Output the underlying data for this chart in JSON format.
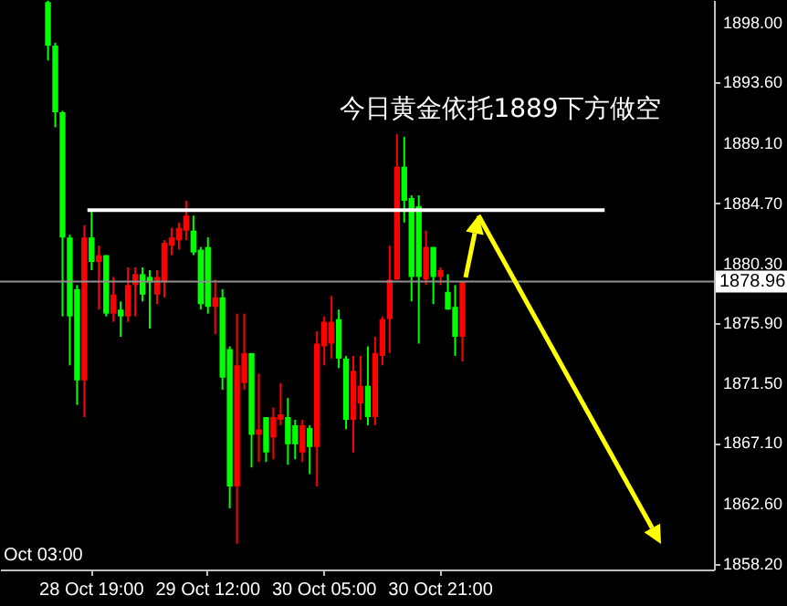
{
  "chart_data": {
    "type": "candlestick",
    "annotations": [
      "今日黄金依托1889下方做空",
      "Oct 03:00"
    ],
    "categories": [
      null,
      null,
      null,
      null,
      null,
      null,
      null,
      null,
      null,
      null,
      null,
      null,
      "28 Oct 19:00",
      null,
      null,
      null,
      null,
      null,
      null,
      null,
      null,
      null,
      null,
      null,
      null,
      null,
      null,
      null,
      "29 Oct 12:00",
      null,
      null,
      null,
      null,
      null,
      null,
      null,
      null,
      null,
      null,
      null,
      null,
      null,
      null,
      null,
      "30 Oct 05:00",
      null,
      null,
      null,
      null,
      null,
      null,
      null,
      null,
      null,
      null,
      null,
      null,
      null,
      null,
      null,
      "30 Oct 21:00",
      null,
      null,
      null,
      null,
      null,
      null,
      null,
      null,
      null,
      null,
      null,
      null,
      null,
      null,
      null,
      null,
      null,
      null,
      null,
      null,
      null,
      null,
      null,
      null,
      null,
      null,
      null,
      null,
      null,
      null,
      null,
      null,
      null,
      null,
      null,
      null,
      null
    ],
    "ohlc": [
      null,
      null,
      null,
      null,
      null,
      null,
      [
        1899.5,
        1899.6,
        1895.2,
        1896.3
      ],
      [
        1896.3,
        1896.5,
        1890.3,
        1891.4
      ],
      [
        1891.4,
        1891.5,
        1876.4,
        1882.2
      ],
      [
        1882.2,
        1882.4,
        1872.8,
        1876.4
      ],
      [
        1878.4,
        1878.7,
        1869.9,
        1871.7
      ],
      [
        1871.7,
        1883.1,
        1869.0,
        1882.2
      ],
      [
        1882.2,
        1884.2,
        1879.8,
        1880.4
      ],
      [
        1880.4,
        1881.6,
        1876.9,
        1880.9
      ],
      [
        1880.9,
        1880.9,
        1876.4,
        1876.6
      ],
      [
        1876.6,
        1879.3,
        1876.0,
        1878.0
      ],
      [
        1876.9,
        1877.5,
        1874.9,
        1876.4
      ],
      [
        1876.4,
        1880.0,
        1876.0,
        1878.7
      ],
      [
        1878.7,
        1880.0,
        1876.4,
        1879.5
      ],
      [
        1879.5,
        1880.0,
        1877.5,
        1878.0
      ],
      [
        1879.3,
        1879.8,
        1875.5,
        1878.9
      ],
      [
        1878.0,
        1879.8,
        1877.3,
        1879.3
      ],
      [
        1878.9,
        1882.0,
        1877.8,
        1881.8
      ],
      [
        1881.6,
        1882.9,
        1880.9,
        1882.2
      ],
      [
        1882.0,
        1883.3,
        1881.3,
        1882.9
      ],
      [
        1882.7,
        1884.9,
        1882.0,
        1883.8
      ],
      [
        1882.7,
        1883.8,
        1880.9,
        1881.1
      ],
      [
        1881.3,
        1881.5,
        1876.9,
        1877.3
      ],
      [
        1881.5,
        1882.2,
        1876.6,
        1877.1
      ],
      [
        1877.1,
        1879.1,
        1875.1,
        1877.8
      ],
      [
        1877.8,
        1878.4,
        1871.0,
        1871.9
      ],
      [
        1874.0,
        1874.2,
        1862.3,
        1863.9
      ],
      [
        1863.9,
        1876.6,
        1859.7,
        1872.8
      ],
      [
        1871.5,
        1876.6,
        1871.0,
        1873.7
      ],
      [
        1873.7,
        1873.7,
        1865.3,
        1867.7
      ],
      [
        1867.7,
        1872.2,
        1865.7,
        1868.1
      ],
      [
        1869.0,
        1869.0,
        1865.7,
        1866.4
      ],
      [
        1867.5,
        1869.7,
        1865.9,
        1869.0
      ],
      [
        1868.8,
        1871.5,
        1868.4,
        1869.2
      ],
      [
        1869.0,
        1870.4,
        1865.5,
        1867.0
      ],
      [
        1868.4,
        1868.8,
        1865.9,
        1867.0
      ],
      [
        1866.4,
        1868.8,
        1865.7,
        1868.4
      ],
      [
        1868.2,
        1868.4,
        1864.8,
        1866.8
      ],
      [
        1866.8,
        1875.3,
        1863.9,
        1874.4
      ],
      [
        1874.2,
        1876.4,
        1872.8,
        1876.0
      ],
      [
        1874.4,
        1877.9,
        1873.3,
        1876.0
      ],
      [
        1876.2,
        1876.9,
        1872.6,
        1873.3
      ],
      [
        1873.3,
        1873.5,
        1868.1,
        1868.8
      ],
      [
        1868.8,
        1873.5,
        1866.4,
        1872.4
      ],
      [
        1870.0,
        1873.5,
        1868.8,
        1871.3
      ],
      [
        1871.3,
        1874.2,
        1868.4,
        1869.0
      ],
      [
        1869.0,
        1874.9,
        1868.4,
        1873.7
      ],
      [
        1873.5,
        1876.4,
        1872.8,
        1876.2
      ],
      [
        1876.2,
        1881.6,
        1873.7,
        1879.1
      ],
      [
        1879.1,
        1889.8,
        1879.1,
        1887.4
      ],
      [
        1887.4,
        1889.6,
        1883.3,
        1884.9
      ],
      [
        1885.1,
        1885.3,
        1877.5,
        1879.3
      ],
      [
        1884.5,
        1885.3,
        1874.4,
        1879.3
      ],
      [
        1879.1,
        1882.7,
        1878.7,
        1881.5
      ],
      [
        1881.5,
        1881.5,
        1877.3,
        1879.3
      ],
      [
        1879.3,
        1880.0,
        1878.7,
        1879.8
      ],
      [
        1878.2,
        1879.5,
        1876.9,
        1876.9
      ],
      [
        1877.1,
        1878.7,
        1873.5,
        1874.9
      ],
      [
        1874.9,
        1878.96,
        1873.1,
        1878.96
      ],
      null,
      null,
      null,
      null,
      null,
      null,
      null,
      null,
      null,
      null,
      null,
      null,
      null,
      null,
      null,
      null,
      null,
      null,
      null,
      null,
      null,
      null,
      null,
      null,
      null,
      null,
      null,
      null,
      null,
      null,
      null,
      null,
      null,
      null
    ],
    "colors": [
      null,
      null,
      null,
      null,
      null,
      null,
      "#00ff00",
      "#00ff00",
      "#00ff00",
      "#00ff00",
      "#00ff00",
      "#ff0000",
      "#00ff00",
      "#ff0000",
      "#00ff00",
      "#ff0000",
      "#00ff00",
      "#ff0000",
      "#ff0000",
      "#00ff00",
      "#00ff00",
      "#ff0000",
      "#ff0000",
      "#ff0000",
      "#ff0000",
      "#ff0000",
      "#00ff00",
      "#00ff00",
      "#00ff00",
      "#ff0000",
      "#00ff00",
      "#00ff00",
      "#ff0000",
      "#ff0000",
      "#00ff00",
      "#ff0000",
      "#00ff00",
      "#ff0000",
      "#ff0000",
      "#00ff00",
      "#00ff00",
      "#ff0000",
      "#00ff00",
      "#ff0000",
      "#ff0000",
      "#ff0000",
      "#00ff00",
      "#00ff00",
      "#ff0000",
      "#ff0000",
      "#00ff00",
      "#ff0000",
      "#ff0000",
      "#ff0000",
      "#ff0000",
      "#00ff00",
      "#00ff00",
      "#00ff00",
      "#ff0000",
      "#00ff00",
      "#ff0000",
      "#00ff00",
      "#00ff00",
      "#ff0000",
      null,
      null,
      null,
      null,
      null,
      null,
      null,
      null,
      null,
      null,
      null,
      null,
      null,
      null,
      null,
      null,
      null,
      null,
      null,
      null,
      null,
      null,
      null,
      null,
      null,
      null,
      null,
      null,
      null,
      null,
      null,
      null,
      null,
      null
    ],
    "ylim": [
      1857.8,
      1899.65
    ],
    "yticks": [
      {
        "value": 1898,
        "label": "1898.00"
      },
      {
        "value": 1893.6,
        "label": "1893.60"
      },
      {
        "value": 1889.1,
        "label": "1889.10"
      },
      {
        "value": 1884.7,
        "label": "1884.70"
      },
      {
        "value": 1880.3,
        "label": "1880.30"
      },
      {
        "value": 1875.9,
        "label": "1875.90"
      },
      {
        "value": 1871.5,
        "label": "1871.50"
      },
      {
        "value": 1867.1,
        "label": "1867.10"
      },
      {
        "value": 1862.6,
        "label": "1862.60"
      },
      {
        "value": 1858.2,
        "label": "1858.20"
      }
    ],
    "ref_lines": [
      {
        "axis": "y",
        "value": 1878.96,
        "label": "1878.96",
        "color": "#909090"
      },
      {
        "axis": "y",
        "value": 1884.2,
        "color": "#ffffff"
      }
    ]
  }
}
